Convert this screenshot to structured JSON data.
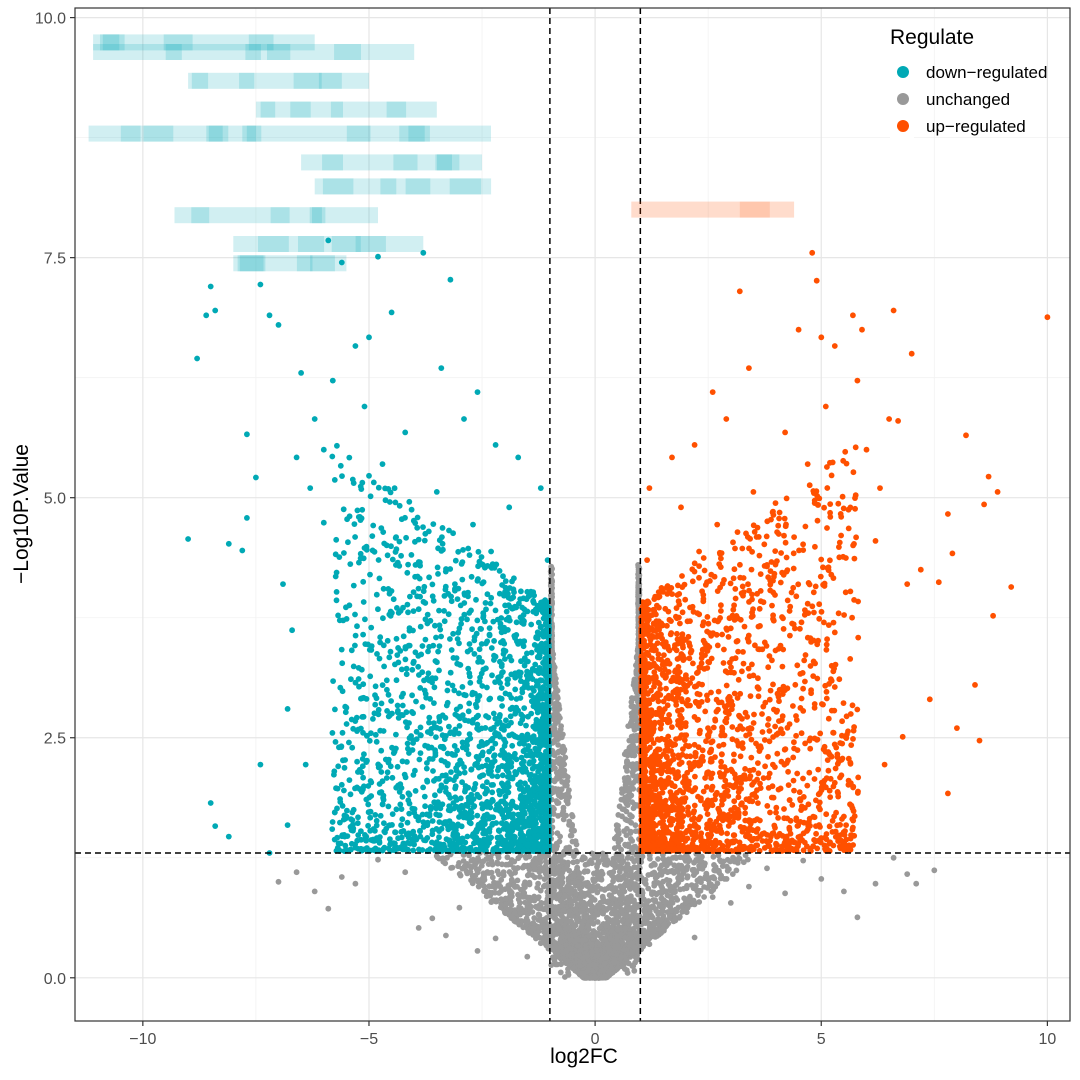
{
  "chart_data": {
    "type": "scatter",
    "title": "",
    "xlabel": "log2FC",
    "ylabel": "−Log10P.Value",
    "xlim": [
      -11.5,
      10.5
    ],
    "ylim": [
      -0.45,
      10.1
    ],
    "x_ticks": [
      -10,
      -5,
      0,
      5,
      10
    ],
    "x_tick_labels": [
      "−10",
      "−5",
      "0",
      "5",
      "10"
    ],
    "y_ticks": [
      0,
      2.5,
      5,
      7.5,
      10
    ],
    "y_tick_labels": [
      "0.0",
      "2.5",
      "5.0",
      "7.5",
      "10.0"
    ],
    "grid": true,
    "thresholds": {
      "log2FC": [
        -1,
        1
      ],
      "neg_log10_p": 1.3
    },
    "legend": {
      "title": "Regulate",
      "position": "top-right",
      "entries": [
        {
          "label": "down−regulated",
          "color": "#00A9B5"
        },
        {
          "label": "unchanged",
          "color": "#999999"
        },
        {
          "label": "up−regulated",
          "color": "#FF5000"
        }
      ]
    },
    "series": [
      {
        "name": "down−regulated",
        "color": "#00A9B5",
        "points": [
          [
            -9.0,
            4.57
          ],
          [
            -8.8,
            6.45
          ],
          [
            -8.6,
            6.9
          ],
          [
            -8.5,
            7.2
          ],
          [
            -8.4,
            6.95
          ],
          [
            -8.5,
            1.82
          ],
          [
            -8.4,
            1.58
          ],
          [
            -8.1,
            1.47
          ],
          [
            -8.1,
            4.52
          ],
          [
            -7.8,
            4.45
          ],
          [
            -7.7,
            4.79
          ],
          [
            -7.7,
            5.66
          ],
          [
            -7.5,
            5.21
          ],
          [
            -7.4,
            7.22
          ],
          [
            -7.4,
            2.22
          ],
          [
            -7.2,
            6.9
          ],
          [
            -7.2,
            1.3
          ],
          [
            -7.0,
            6.8
          ],
          [
            -6.9,
            4.1
          ],
          [
            -6.8,
            1.59
          ],
          [
            -6.8,
            2.8
          ],
          [
            -6.7,
            3.62
          ],
          [
            -6.6,
            5.42
          ],
          [
            -6.5,
            6.3
          ],
          [
            -6.4,
            2.22
          ],
          [
            -6.3,
            5.1
          ],
          [
            -6.2,
            5.82
          ],
          [
            -6.0,
            5.5
          ],
          [
            -6.0,
            4.74
          ],
          [
            -5.9,
            7.68
          ],
          [
            -5.8,
            6.22
          ],
          [
            -5.6,
            7.45
          ],
          [
            -5.6,
            2.01
          ],
          [
            -5.5,
            1.68
          ],
          [
            -5.4,
            3.11
          ],
          [
            -5.3,
            6.58
          ],
          [
            -5.2,
            4.8
          ],
          [
            -5.1,
            5.95
          ],
          [
            -5.0,
            6.67
          ],
          [
            -4.9,
            1.55
          ],
          [
            -4.8,
            7.51
          ],
          [
            -4.7,
            5.35
          ],
          [
            -4.6,
            2.78
          ],
          [
            -4.5,
            6.93
          ],
          [
            -4.4,
            4.59
          ],
          [
            -4.3,
            3.82
          ],
          [
            -4.2,
            5.68
          ],
          [
            -4.1,
            3.46
          ],
          [
            -4.0,
            1.72
          ],
          [
            -3.9,
            4.33
          ],
          [
            -3.8,
            7.55
          ],
          [
            -3.7,
            2.56
          ],
          [
            -3.6,
            3.12
          ],
          [
            -3.5,
            5.06
          ],
          [
            -3.4,
            6.35
          ],
          [
            -3.3,
            2.11
          ],
          [
            -3.2,
            7.27
          ],
          [
            -3.1,
            4.05
          ],
          [
            -3.0,
            3.64
          ],
          [
            -2.9,
            5.82
          ],
          [
            -2.8,
            2.33
          ],
          [
            -2.7,
            4.72
          ],
          [
            -2.6,
            6.1
          ],
          [
            -2.5,
            3.29
          ],
          [
            -2.4,
            1.94
          ],
          [
            -2.3,
            4.44
          ],
          [
            -2.2,
            5.55
          ],
          [
            -2.1,
            3.07
          ],
          [
            -2.0,
            2.62
          ],
          [
            -1.9,
            4.9
          ],
          [
            -1.8,
            3.85
          ],
          [
            -1.7,
            5.42
          ],
          [
            -1.6,
            2.15
          ],
          [
            -1.5,
            4.02
          ],
          [
            -1.4,
            2.88
          ],
          [
            -1.3,
            3.55
          ],
          [
            -1.2,
            5.1
          ],
          [
            -1.15,
            1.66
          ],
          [
            -1.1,
            3.21
          ],
          [
            -1.05,
            4.35
          ]
        ]
      },
      {
        "name": "unchanged",
        "color": "#999999",
        "points": [
          [
            -7.0,
            1.0
          ],
          [
            -6.6,
            1.1
          ],
          [
            -6.2,
            0.9
          ],
          [
            -5.9,
            0.72
          ],
          [
            -5.6,
            1.05
          ],
          [
            -5.3,
            0.98
          ],
          [
            -4.8,
            1.23
          ],
          [
            -4.2,
            1.1
          ],
          [
            -3.9,
            0.52
          ],
          [
            -3.6,
            0.62
          ],
          [
            -3.3,
            0.44
          ],
          [
            -3.0,
            0.73
          ],
          [
            -2.6,
            0.28
          ],
          [
            -2.2,
            0.41
          ],
          [
            -1.8,
            0.62
          ],
          [
            -1.5,
            0.22
          ],
          [
            -1.2,
            0.36
          ],
          [
            -0.9,
            0.18
          ],
          [
            -0.6,
            0.09
          ],
          [
            -0.3,
            0.05
          ],
          [
            0.0,
            0.01
          ],
          [
            0.3,
            0.06
          ],
          [
            0.6,
            0.12
          ],
          [
            0.9,
            0.21
          ],
          [
            1.2,
            0.35
          ],
          [
            1.5,
            0.51
          ],
          [
            1.8,
            0.69
          ],
          [
            2.2,
            0.42
          ],
          [
            2.6,
            0.84
          ],
          [
            3.0,
            0.78
          ],
          [
            3.4,
            0.95
          ],
          [
            3.8,
            1.14
          ],
          [
            4.2,
            0.88
          ],
          [
            4.6,
            1.22
          ],
          [
            5.0,
            1.03
          ],
          [
            5.5,
            0.9
          ],
          [
            5.8,
            0.63
          ],
          [
            6.2,
            0.98
          ],
          [
            6.6,
            1.25
          ],
          [
            6.9,
            1.08
          ],
          [
            7.1,
            0.98
          ],
          [
            7.5,
            1.12
          ],
          [
            -0.95,
            3.4
          ],
          [
            -0.95,
            2.6
          ],
          [
            -0.8,
            1.9
          ],
          [
            -0.6,
            1.2
          ],
          [
            -0.4,
            0.6
          ],
          [
            0.4,
            0.6
          ],
          [
            0.6,
            1.2
          ],
          [
            0.8,
            1.9
          ],
          [
            0.95,
            2.6
          ],
          [
            0.95,
            3.4
          ],
          [
            0.95,
            4.3
          ],
          [
            -0.95,
            4.2
          ],
          [
            -0.95,
            3.9
          ],
          [
            0.95,
            3.9
          ]
        ]
      },
      {
        "name": "up−regulated",
        "color": "#FF5000",
        "points": [
          [
            1.05,
            1.66
          ],
          [
            1.1,
            3.21
          ],
          [
            1.15,
            4.35
          ],
          [
            1.2,
            5.1
          ],
          [
            1.3,
            3.55
          ],
          [
            1.4,
            2.88
          ],
          [
            1.5,
            4.02
          ],
          [
            1.6,
            2.15
          ],
          [
            1.7,
            5.42
          ],
          [
            1.8,
            3.85
          ],
          [
            1.9,
            4.9
          ],
          [
            2.0,
            2.62
          ],
          [
            2.1,
            3.07
          ],
          [
            2.2,
            5.55
          ],
          [
            2.3,
            4.44
          ],
          [
            2.4,
            1.94
          ],
          [
            2.5,
            3.29
          ],
          [
            2.6,
            6.1
          ],
          [
            2.7,
            4.72
          ],
          [
            2.8,
            2.33
          ],
          [
            2.9,
            5.82
          ],
          [
            3.0,
            3.64
          ],
          [
            3.1,
            4.05
          ],
          [
            3.2,
            7.15
          ],
          [
            3.3,
            2.11
          ],
          [
            3.4,
            6.35
          ],
          [
            3.5,
            5.06
          ],
          [
            3.6,
            3.12
          ],
          [
            3.7,
            2.56
          ],
          [
            3.8,
            4.3
          ],
          [
            3.9,
            4.33
          ],
          [
            4.0,
            1.72
          ],
          [
            4.1,
            3.46
          ],
          [
            4.2,
            5.68
          ],
          [
            4.3,
            3.82
          ],
          [
            4.4,
            4.59
          ],
          [
            4.5,
            6.75
          ],
          [
            4.6,
            2.78
          ],
          [
            4.7,
            5.35
          ],
          [
            4.8,
            7.55
          ],
          [
            4.9,
            7.26
          ],
          [
            5.0,
            6.67
          ],
          [
            5.1,
            5.95
          ],
          [
            5.2,
            4.8
          ],
          [
            5.3,
            6.58
          ],
          [
            5.4,
            3.11
          ],
          [
            5.5,
            1.68
          ],
          [
            5.6,
            2.01
          ],
          [
            5.7,
            6.9
          ],
          [
            5.8,
            6.22
          ],
          [
            5.9,
            6.75
          ],
          [
            6.0,
            5.5
          ],
          [
            6.2,
            4.55
          ],
          [
            6.3,
            5.1
          ],
          [
            6.4,
            2.22
          ],
          [
            6.5,
            5.82
          ],
          [
            6.6,
            6.95
          ],
          [
            6.7,
            5.8
          ],
          [
            6.9,
            4.1
          ],
          [
            7.0,
            6.5
          ],
          [
            7.2,
            4.25
          ],
          [
            7.4,
            2.9
          ],
          [
            7.6,
            4.12
          ],
          [
            7.8,
            4.83
          ],
          [
            7.9,
            4.42
          ],
          [
            8.0,
            2.6
          ],
          [
            8.2,
            5.65
          ],
          [
            8.4,
            3.05
          ],
          [
            8.5,
            2.47
          ],
          [
            8.6,
            4.93
          ],
          [
            8.7,
            5.22
          ],
          [
            8.8,
            3.77
          ],
          [
            8.9,
            5.06
          ],
          [
            9.2,
            4.07
          ],
          [
            10.0,
            6.88
          ],
          [
            7.8,
            1.92
          ],
          [
            6.8,
            2.51
          ]
        ]
      }
    ],
    "redacted_labels": [
      {
        "side": "left",
        "color": "#00A9B5"
      },
      {
        "side": "right",
        "color": "#FF5000"
      }
    ]
  }
}
